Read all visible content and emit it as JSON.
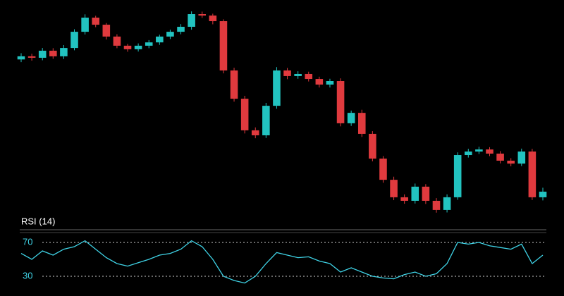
{
  "chart_data": [
    {
      "type": "candlestick",
      "open": [
        76.5,
        78.0,
        77.3,
        80.7,
        78.0,
        82.0,
        89.8,
        96.6,
        93.2,
        87.5,
        83.1,
        81.4,
        83.1,
        84.7,
        87.5,
        89.8,
        92.2,
        98.3,
        97.6,
        94.9,
        71.2,
        57.6,
        42.4,
        40.0,
        54.2,
        71.2,
        68.5,
        69.5,
        67.1,
        64.4,
        66.1,
        45.8,
        50.8,
        40.7,
        28.8,
        18.6,
        10.2,
        8.5,
        15.3,
        8.5,
        4.1,
        10.2,
        30.5,
        32.2,
        33.2,
        31.2,
        27.8,
        26.4,
        32.2,
        10.2
      ],
      "close": [
        78.0,
        77.3,
        80.7,
        78.0,
        82.0,
        89.8,
        96.6,
        93.2,
        87.5,
        83.1,
        81.4,
        83.1,
        84.7,
        87.5,
        89.8,
        92.2,
        98.3,
        97.6,
        94.9,
        71.2,
        57.6,
        42.4,
        40.0,
        54.2,
        71.2,
        68.5,
        69.5,
        67.1,
        64.4,
        66.1,
        45.8,
        50.8,
        40.7,
        28.8,
        18.6,
        10.2,
        8.5,
        15.3,
        8.5,
        4.1,
        10.2,
        30.5,
        32.2,
        33.2,
        31.2,
        27.8,
        26.4,
        32.2,
        10.2,
        12.9
      ],
      "high": [
        79.5,
        79.2,
        82.0,
        81.9,
        83.4,
        91.0,
        98.2,
        97.5,
        94.0,
        88.6,
        84.0,
        84.2,
        85.8,
        88.4,
        90.8,
        93.5,
        99.6,
        99.5,
        98.5,
        95.8,
        72.5,
        59.0,
        43.8,
        55.6,
        72.8,
        72.4,
        70.8,
        70.6,
        68.2,
        67.2,
        67.4,
        51.9,
        52.3,
        42.0,
        30.0,
        20.1,
        11.6,
        16.8,
        16.5,
        9.8,
        11.6,
        31.8,
        33.5,
        34.5,
        34.3,
        32.4,
        29.0,
        33.6,
        33.5,
        14.8
      ],
      "low": [
        75.2,
        75.9,
        76.1,
        76.8,
        76.7,
        80.9,
        88.5,
        92.0,
        86.1,
        81.9,
        80.2,
        80.3,
        81.9,
        83.5,
        86.3,
        88.6,
        90.8,
        96.5,
        93.4,
        69.8,
        56.2,
        40.9,
        38.6,
        38.7,
        52.8,
        67.0,
        67.2,
        65.9,
        63.0,
        63.0,
        44.3,
        44.5,
        39.2,
        27.5,
        17.2,
        8.8,
        7.1,
        7.2,
        7.0,
        2.8,
        2.9,
        9.0,
        29.3,
        31.0,
        30.0,
        26.5,
        25.1,
        25.2,
        8.9,
        8.7
      ],
      "up_color": "#22c3c0",
      "down_color": "#e03a3e",
      "ylim": [
        0,
        100
      ]
    },
    {
      "type": "line",
      "title": "RSI (14)",
      "values": [
        57,
        50,
        60,
        55,
        62,
        65,
        72,
        62,
        52,
        45,
        42,
        46,
        50,
        55,
        57,
        62,
        72,
        65,
        50,
        30,
        25,
        22,
        30,
        45,
        58,
        55,
        52,
        53,
        48,
        45,
        35,
        40,
        35,
        30,
        28,
        27,
        32,
        35,
        30,
        33,
        45,
        70,
        68,
        70,
        66,
        64,
        62,
        68,
        45,
        55
      ],
      "color": "#3fd3e6",
      "ylim": [
        15,
        80
      ],
      "yticks": [
        30,
        70
      ],
      "grid": true
    }
  ]
}
